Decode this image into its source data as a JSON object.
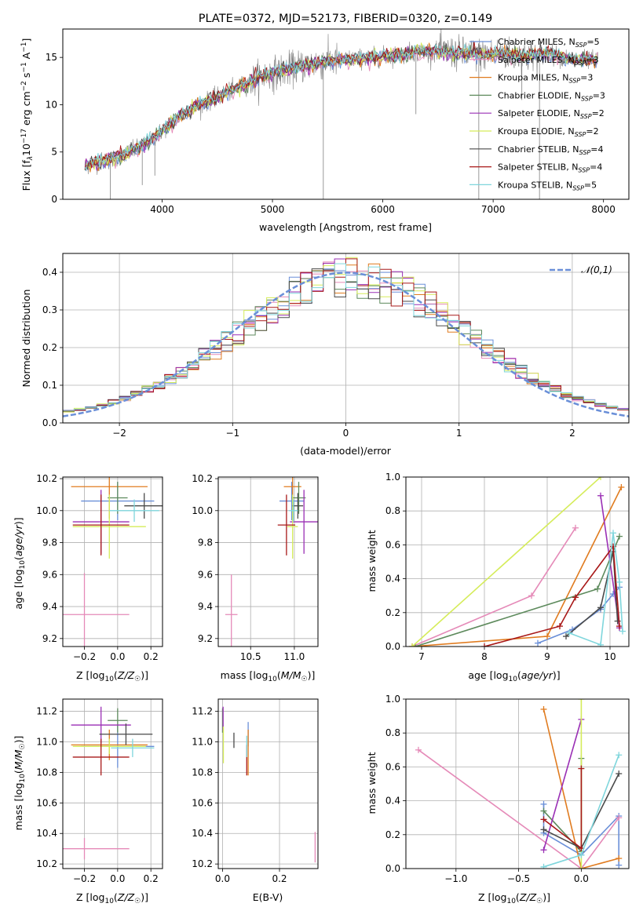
{
  "colors": {
    "Chabrier MILES": "#6a8fd8",
    "Salpeter MILES": "#e58ab8",
    "Kroupa MILES": "#e07b1f",
    "Chabrier ELODIE": "#5d8a5c",
    "Salpeter ELODIE": "#9a2fb5",
    "Kroupa ELODIE": "#d5ec5a",
    "Chabrier STELIB": "#4a4a4a",
    "Salpeter STELIB": "#a81818",
    "Kroupa STELIB": "#7fd6dc",
    "observed": "#808080",
    "normal": "#6a8fd8"
  },
  "chart_data": [
    {
      "id": "spectrum",
      "type": "line",
      "title": "PLATE=0372, MJD=52173, FIBERID=0320, z=0.149",
      "xlabel": "wavelength [Angstrom, rest frame]",
      "ylabel_parts": [
        "Flux [f",
        "λ",
        "10",
        "−17",
        " erg cm",
        "−2",
        " s",
        "−1",
        " A",
        "−1",
        "]"
      ],
      "xlim": [
        3100,
        8230
      ],
      "ylim": [
        0,
        18
      ],
      "xticks": [
        4000,
        5000,
        6000,
        7000,
        8000
      ],
      "yticks": [
        0,
        5,
        10,
        15
      ],
      "legend": [
        {
          "name": "Chabrier MILES",
          "nssp": "5"
        },
        {
          "name": "Salpeter MILES",
          "nssp": "3"
        },
        {
          "name": "Kroupa MILES",
          "nssp": "3"
        },
        {
          "name": "Chabrier ELODIE",
          "nssp": "3"
        },
        {
          "name": "Salpeter ELODIE",
          "nssp": "2"
        },
        {
          "name": "Kroupa ELODIE",
          "nssp": "2"
        },
        {
          "name": "Chabrier STELIB",
          "nssp": "4"
        },
        {
          "name": "Salpeter STELIB",
          "nssp": "4"
        },
        {
          "name": "Kroupa STELIB",
          "nssp": "5"
        }
      ],
      "legend_position": "upper right",
      "continuum": {
        "x": [
          3300,
          3500,
          3700,
          3900,
          4100,
          4300,
          4500,
          4700,
          4900,
          5100,
          5300,
          5500,
          5700,
          5900,
          6100,
          6300,
          6500,
          6700,
          6900,
          7100,
          7300,
          7500,
          7700,
          7900
        ],
        "y": [
          3.6,
          4.1,
          4.9,
          6.2,
          8.3,
          9.8,
          10.8,
          11.9,
          13.0,
          13.6,
          14.2,
          14.6,
          14.8,
          15.0,
          15.2,
          15.6,
          15.6,
          15.4,
          15.3,
          15.4,
          15.1,
          15.4,
          14.8,
          14.7
        ]
      },
      "absorption_lines": [
        {
          "x": 3530,
          "y": 0
        },
        {
          "x": 3820,
          "y": 1.5
        },
        {
          "x": 3934,
          "y": 2.5
        },
        {
          "x": 5461,
          "y": 0
        },
        {
          "x": 6300,
          "y": 9.0
        },
        {
          "x": 6870,
          "y": 0
        },
        {
          "x": 7260,
          "y": 10.5
        },
        {
          "x": 7420,
          "y": 0
        }
      ],
      "grid": false
    },
    {
      "id": "residuals",
      "type": "histogram",
      "xlabel": "(data-model)/error",
      "ylabel": "Normed distribution",
      "xlim": [
        -2.5,
        2.5
      ],
      "ylim": [
        0,
        0.45
      ],
      "xticks": [
        -2,
        -1,
        0,
        1,
        2
      ],
      "yticks": [
        0.0,
        0.1,
        0.2,
        0.3,
        0.4
      ],
      "legend": [
        {
          "name": "𝒩(0,1)"
        }
      ],
      "legend_position": "upper right",
      "bin_width": 0.1,
      "grid": true
    },
    {
      "id": "age-vs-Z",
      "type": "errorbar",
      "xlabel": "Z [log10(Z/Z☉)]",
      "ylabel": "age  [log10(age/yr)]",
      "xlim": [
        -0.33,
        0.27
      ],
      "ylim": [
        9.15,
        10.21
      ],
      "xticks": [
        -0.2,
        0.0,
        0.2
      ],
      "yticks": [
        9.2,
        9.4,
        9.6,
        9.8,
        10.0,
        10.2
      ],
      "points": [
        {
          "series": "Chabrier MILES",
          "x": 0.0,
          "xerr": 0.22,
          "y": 10.06,
          "yerr": 0.12
        },
        {
          "series": "Salpeter MILES",
          "x": -0.2,
          "xerr": 0.27,
          "y": 9.35,
          "yerr": 0.26
        },
        {
          "series": "Kroupa MILES",
          "x": -0.05,
          "xerr": 0.23,
          "y": 10.15,
          "yerr": 0.2
        },
        {
          "series": "Chabrier ELODIE",
          "x": 0.0,
          "xerr": 0.06,
          "y": 10.08,
          "yerr": 0.1
        },
        {
          "series": "Salpeter ELODIE",
          "x": -0.1,
          "xerr": 0.17,
          "y": 9.93,
          "yerr": 0.2
        },
        {
          "series": "Kroupa ELODIE",
          "x": -0.05,
          "xerr": 0.22,
          "y": 9.9,
          "yerr": 0.2
        },
        {
          "series": "Chabrier STELIB",
          "x": 0.16,
          "xerr": 0.12,
          "y": 10.03,
          "yerr": 0.08
        },
        {
          "series": "Salpeter STELIB",
          "x": -0.1,
          "xerr": 0.17,
          "y": 9.91,
          "yerr": 0.19
        },
        {
          "series": "Kroupa STELIB",
          "x": 0.1,
          "xerr": 0.15,
          "y": 10.0,
          "yerr": 0.07
        }
      ],
      "grid": true
    },
    {
      "id": "age-vs-mass",
      "type": "errorbar",
      "xlabel": "mass [log10(M/M☉)]",
      "ylabel": "",
      "xlim": [
        10.13,
        11.27
      ],
      "ylim": [
        9.15,
        10.21
      ],
      "xticks": [
        10.5,
        11.0
      ],
      "yticks": [
        9.2,
        9.4,
        9.6,
        9.8,
        10.0,
        10.2
      ],
      "points": [
        {
          "series": "Chabrier MILES",
          "x": 10.97,
          "xerr": 0.14,
          "y": 10.06,
          "yerr": 0.12
        },
        {
          "series": "Salpeter MILES",
          "x": 10.28,
          "xerr": 0.07,
          "y": 9.35,
          "yerr": 0.25
        },
        {
          "series": "Kroupa MILES",
          "x": 10.98,
          "xerr": 0.1,
          "y": 10.15,
          "yerr": 0.2
        },
        {
          "series": "Chabrier ELODIE",
          "x": 11.05,
          "xerr": 0.08,
          "y": 10.08,
          "yerr": 0.1
        },
        {
          "series": "Salpeter ELODIE",
          "x": 11.11,
          "xerr": 0.16,
          "y": 9.93,
          "yerr": 0.2
        },
        {
          "series": "Kroupa ELODIE",
          "x": 10.98,
          "xerr": 0.06,
          "y": 9.9,
          "yerr": 0.2
        },
        {
          "series": "Chabrier STELIB",
          "x": 11.04,
          "xerr": 0.06,
          "y": 10.03,
          "yerr": 0.08
        },
        {
          "series": "Salpeter STELIB",
          "x": 10.91,
          "xerr": 0.1,
          "y": 9.91,
          "yerr": 0.19
        },
        {
          "series": "Kroupa STELIB",
          "x": 10.99,
          "xerr": 0.05,
          "y": 10.0,
          "yerr": 0.07
        }
      ],
      "grid": true
    },
    {
      "id": "weight-vs-age",
      "type": "line",
      "xlabel": "age  [log10(age/yr)]",
      "ylabel": "mass weight",
      "xlim": [
        6.75,
        10.3
      ],
      "ylim": [
        0,
        1
      ],
      "xticks": [
        7,
        8,
        9,
        10
      ],
      "yticks": [
        0.0,
        0.2,
        0.4,
        0.6,
        0.8,
        1.0
      ],
      "series": [
        {
          "name": "Chabrier MILES",
          "x": [
            8.85,
            9.4,
            9.85,
            10.05,
            10.15
          ],
          "y": [
            0.02,
            0.1,
            0.22,
            0.31,
            0.35
          ]
        },
        {
          "name": "Salpeter MILES",
          "x": [
            6.85,
            8.75,
            9.45
          ],
          "y": [
            0.0,
            0.3,
            0.7
          ]
        },
        {
          "name": "Kroupa MILES",
          "x": [
            6.85,
            9.0,
            10.18
          ],
          "y": [
            0.0,
            0.06,
            0.94
          ]
        },
        {
          "name": "Chabrier ELODIE",
          "x": [
            6.9,
            9.8,
            10.15
          ],
          "y": [
            0.0,
            0.34,
            0.65
          ]
        },
        {
          "name": "Salpeter ELODIE",
          "x": [
            9.85,
            10.15
          ],
          "y": [
            0.89,
            0.11
          ]
        },
        {
          "name": "Kroupa ELODIE",
          "x": [
            6.85,
            9.85
          ],
          "y": [
            0.0,
            1.0
          ]
        },
        {
          "name": "Chabrier STELIB",
          "x": [
            9.3,
            9.85,
            10.05,
            10.12
          ],
          "y": [
            0.06,
            0.23,
            0.56,
            0.15
          ]
        },
        {
          "name": "Salpeter STELIB",
          "x": [
            8.0,
            9.2,
            9.45,
            10.05,
            10.15
          ],
          "y": [
            0.0,
            0.12,
            0.29,
            0.59,
            0.12
          ]
        },
        {
          "name": "Kroupa STELIB",
          "x": [
            9.35,
            9.85,
            10.05,
            10.15,
            10.2
          ],
          "y": [
            0.08,
            0.01,
            0.67,
            0.38,
            0.09
          ]
        }
      ],
      "grid": true
    },
    {
      "id": "mass-vs-Z",
      "type": "errorbar",
      "xlabel": "Z [log10(Z/Z☉)]",
      "ylabel": "mass [log10(M/M☉)]",
      "xlim": [
        -0.33,
        0.27
      ],
      "ylim": [
        10.17,
        11.28
      ],
      "xticks": [
        -0.2,
        0.0,
        0.2
      ],
      "yticks": [
        10.2,
        10.4,
        10.6,
        10.8,
        11.0,
        11.2
      ],
      "points": [
        {
          "series": "Chabrier MILES",
          "x": 0.0,
          "xerr": 0.22,
          "y": 10.97,
          "yerr": 0.14
        },
        {
          "series": "Salpeter MILES",
          "x": -0.2,
          "xerr": 0.27,
          "y": 10.3,
          "yerr": 0.07
        },
        {
          "series": "Kroupa MILES",
          "x": -0.05,
          "xerr": 0.23,
          "y": 10.98,
          "yerr": 0.1
        },
        {
          "series": "Chabrier ELODIE",
          "x": 0.0,
          "xerr": 0.06,
          "y": 11.14,
          "yerr": 0.08
        },
        {
          "series": "Salpeter ELODIE",
          "x": -0.1,
          "xerr": 0.18,
          "y": 11.11,
          "yerr": 0.12
        },
        {
          "series": "Kroupa ELODIE",
          "x": -0.05,
          "xerr": 0.22,
          "y": 10.97,
          "yerr": 0.05
        },
        {
          "series": "Chabrier STELIB",
          "x": 0.05,
          "xerr": 0.16,
          "y": 11.05,
          "yerr": 0.07
        },
        {
          "series": "Salpeter STELIB",
          "x": -0.1,
          "xerr": 0.17,
          "y": 10.9,
          "yerr": 0.12
        },
        {
          "series": "Kroupa STELIB",
          "x": 0.09,
          "xerr": 0.13,
          "y": 10.96,
          "yerr": 0.06
        }
      ],
      "grid": true
    },
    {
      "id": "mass-vs-ebv",
      "type": "errorbar",
      "xlabel": "E(B-V)",
      "ylabel": "",
      "xlim": [
        -0.015,
        0.335
      ],
      "ylim": [
        10.17,
        11.28
      ],
      "xticks": [
        0.0,
        0.2
      ],
      "yticks": [
        10.2,
        10.4,
        10.6,
        10.8,
        11.0,
        11.2
      ],
      "points": [
        {
          "series": "Chabrier MILES",
          "x": 0.09,
          "y": 11.05,
          "yerr": 0.08
        },
        {
          "series": "Salpeter MILES",
          "x": 0.325,
          "y": 10.31,
          "yerr": 0.1
        },
        {
          "series": "Kroupa MILES",
          "x": 0.09,
          "y": 10.93,
          "yerr": 0.15
        },
        {
          "series": "Chabrier ELODIE",
          "x": 0.0,
          "y": 11.14,
          "yerr": 0.08
        },
        {
          "series": "Salpeter ELODIE",
          "x": 0.002,
          "y": 11.15,
          "yerr": 0.08
        },
        {
          "series": "Kroupa ELODIE",
          "x": 0.003,
          "y": 10.98,
          "yerr": 0.12
        },
        {
          "series": "Chabrier STELIB",
          "x": 0.04,
          "y": 11.01,
          "yerr": 0.05
        },
        {
          "series": "Salpeter STELIB",
          "x": 0.085,
          "y": 10.88,
          "yerr": 0.1
        },
        {
          "series": "Kroupa STELIB",
          "x": 0.085,
          "y": 10.97,
          "yerr": 0.07
        }
      ],
      "grid": true
    },
    {
      "id": "weight-vs-Z",
      "type": "line",
      "xlabel": "Z [log10(Z/Z☉)]",
      "ylabel": "mass weight",
      "xlim": [
        -1.4,
        0.38
      ],
      "ylim": [
        0,
        1
      ],
      "xticks": [
        -1.0,
        -0.5,
        0.0
      ],
      "yticks": [
        0.0,
        0.2,
        0.4,
        0.6,
        0.8,
        1.0
      ],
      "series": [
        {
          "name": "Chabrier MILES",
          "x": [
            -0.3,
            -0.3,
            0.0,
            0.3,
            0.3
          ],
          "y": [
            0.38,
            0.21,
            0.08,
            0.31,
            0.02
          ]
        },
        {
          "name": "Salpeter MILES",
          "x": [
            -1.3,
            0.0,
            0.3
          ],
          "y": [
            0.7,
            0.0,
            0.3
          ]
        },
        {
          "name": "Kroupa MILES",
          "x": [
            -0.3,
            0.0,
            0.3
          ],
          "y": [
            0.94,
            0.0,
            0.06
          ]
        },
        {
          "name": "Chabrier ELODIE",
          "x": [
            -0.3,
            0.0,
            0.0
          ],
          "y": [
            0.34,
            0.1,
            0.65
          ]
        },
        {
          "name": "Salpeter ELODIE",
          "x": [
            -0.3,
            0.0
          ],
          "y": [
            0.11,
            0.88
          ]
        },
        {
          "name": "Kroupa ELODIE",
          "x": [
            0.0,
            0.0
          ],
          "y": [
            0.0,
            1.0
          ]
        },
        {
          "name": "Chabrier STELIB",
          "x": [
            -0.3,
            0.0,
            0.3
          ],
          "y": [
            0.23,
            0.12,
            0.56
          ]
        },
        {
          "name": "Salpeter STELIB",
          "x": [
            -0.3,
            0.0,
            0.0
          ],
          "y": [
            0.29,
            0.12,
            0.59
          ]
        },
        {
          "name": "Kroupa STELIB",
          "x": [
            -0.3,
            0.0,
            0.3
          ],
          "y": [
            0.01,
            0.08,
            0.67
          ]
        }
      ],
      "grid": true
    }
  ]
}
